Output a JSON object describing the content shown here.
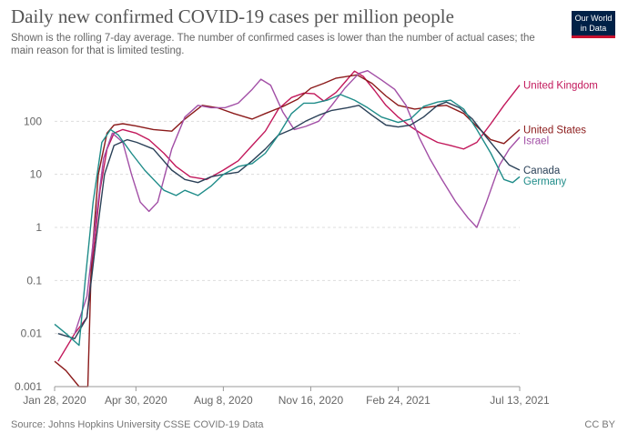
{
  "header": {
    "title": "Daily new confirmed COVID-19 cases per million people",
    "subtitle": "Shown is the rolling 7-day average. The number of confirmed cases is lower than the number of actual cases; the main reason for that is limited testing.",
    "logo_line1": "Our World",
    "logo_line2": "in Data"
  },
  "footer": {
    "source": "Source: Johns Hopkins University CSSE COVID-19 Data",
    "license": "CC BY"
  },
  "colors": {
    "United Kingdom": "#c2185b",
    "United States": "#8b1a1a",
    "Israel": "#a24fa6",
    "Canada": "#2b4158",
    "Germany": "#1f8c89"
  },
  "chart_data": {
    "type": "line",
    "title": "Daily new confirmed COVID-19 cases per million people",
    "yscale": "log",
    "ylim": [
      0.001,
      1000
    ],
    "yticks": [
      0.001,
      0.01,
      0.1,
      1,
      10,
      100
    ],
    "ytick_labels": [
      "0.001",
      "0.01",
      "0.1",
      "1",
      "10",
      "100"
    ],
    "xlim": [
      "2020-01-28",
      "2021-07-13"
    ],
    "xticks": [
      "2020-01-28",
      "2020-04-30",
      "2020-08-08",
      "2020-11-16",
      "2021-02-24",
      "2021-07-13"
    ],
    "xtick_labels": [
      "Jan 28, 2020",
      "Apr 30, 2020",
      "Aug 8, 2020",
      "Nov 16, 2020",
      "Feb 24, 2021",
      "Jul 13, 2021"
    ],
    "grid": true,
    "legend": "inline-right",
    "series": [
      {
        "name": "United Kingdom",
        "points": [
          [
            "2020-02-01",
            0.003
          ],
          [
            "2020-02-20",
            0.01
          ],
          [
            "2020-03-05",
            0.02
          ],
          [
            "2020-03-12",
            0.3
          ],
          [
            "2020-03-20",
            5
          ],
          [
            "2020-03-28",
            30
          ],
          [
            "2020-04-05",
            60
          ],
          [
            "2020-04-15",
            70
          ],
          [
            "2020-04-30",
            60
          ],
          [
            "2020-05-15",
            45
          ],
          [
            "2020-06-01",
            25
          ],
          [
            "2020-06-15",
            14
          ],
          [
            "2020-07-01",
            9
          ],
          [
            "2020-07-20",
            8
          ],
          [
            "2020-08-08",
            12
          ],
          [
            "2020-08-25",
            18
          ],
          [
            "2020-09-10",
            35
          ],
          [
            "2020-09-25",
            65
          ],
          [
            "2020-10-10",
            170
          ],
          [
            "2020-10-25",
            280
          ],
          [
            "2020-11-08",
            340
          ],
          [
            "2020-11-20",
            330
          ],
          [
            "2020-12-01",
            240
          ],
          [
            "2020-12-15",
            350
          ],
          [
            "2020-12-28",
            620
          ],
          [
            "2021-01-05",
            880
          ],
          [
            "2021-01-15",
            700
          ],
          [
            "2021-01-28",
            380
          ],
          [
            "2021-02-10",
            200
          ],
          [
            "2021-02-24",
            120
          ],
          [
            "2021-03-10",
            80
          ],
          [
            "2021-03-25",
            55
          ],
          [
            "2021-04-10",
            40
          ],
          [
            "2021-04-25",
            35
          ],
          [
            "2021-05-10",
            30
          ],
          [
            "2021-05-25",
            40
          ],
          [
            "2021-06-10",
            90
          ],
          [
            "2021-06-25",
            200
          ],
          [
            "2021-07-13",
            480
          ]
        ]
      },
      {
        "name": "United States",
        "points": [
          [
            "2020-01-28",
            0.003
          ],
          [
            "2020-02-10",
            0.002
          ],
          [
            "2020-02-25",
            0.001
          ],
          [
            "2020-03-06",
            0.001
          ],
          [
            "2020-03-10",
            0.2
          ],
          [
            "2020-03-18",
            10
          ],
          [
            "2020-03-28",
            60
          ],
          [
            "2020-04-05",
            85
          ],
          [
            "2020-04-15",
            90
          ],
          [
            "2020-04-30",
            82
          ],
          [
            "2020-05-20",
            70
          ],
          [
            "2020-06-10",
            65
          ],
          [
            "2020-06-25",
            110
          ],
          [
            "2020-07-15",
            200
          ],
          [
            "2020-08-01",
            180
          ],
          [
            "2020-08-20",
            140
          ],
          [
            "2020-09-10",
            110
          ],
          [
            "2020-09-25",
            140
          ],
          [
            "2020-10-15",
            190
          ],
          [
            "2020-11-01",
            260
          ],
          [
            "2020-11-16",
            420
          ],
          [
            "2020-12-01",
            520
          ],
          [
            "2020-12-15",
            650
          ],
          [
            "2021-01-08",
            750
          ],
          [
            "2021-01-25",
            520
          ],
          [
            "2021-02-10",
            300
          ],
          [
            "2021-02-24",
            200
          ],
          [
            "2021-03-15",
            170
          ],
          [
            "2021-04-05",
            190
          ],
          [
            "2021-04-20",
            200
          ],
          [
            "2021-05-10",
            140
          ],
          [
            "2021-05-25",
            80
          ],
          [
            "2021-06-10",
            45
          ],
          [
            "2021-06-25",
            38
          ],
          [
            "2021-07-13",
            70
          ]
        ]
      },
      {
        "name": "Israel",
        "points": [
          [
            "2020-02-20",
            0.01
          ],
          [
            "2020-03-05",
            0.05
          ],
          [
            "2020-03-14",
            1
          ],
          [
            "2020-03-24",
            20
          ],
          [
            "2020-04-03",
            60
          ],
          [
            "2020-04-15",
            40
          ],
          [
            "2020-04-25",
            10
          ],
          [
            "2020-05-05",
            3
          ],
          [
            "2020-05-15",
            2
          ],
          [
            "2020-05-25",
            3
          ],
          [
            "2020-06-10",
            30
          ],
          [
            "2020-06-25",
            120
          ],
          [
            "2020-07-10",
            200
          ],
          [
            "2020-07-25",
            180
          ],
          [
            "2020-08-10",
            180
          ],
          [
            "2020-08-25",
            220
          ],
          [
            "2020-09-10",
            400
          ],
          [
            "2020-09-20",
            620
          ],
          [
            "2020-10-01",
            480
          ],
          [
            "2020-10-15",
            150
          ],
          [
            "2020-10-28",
            70
          ],
          [
            "2020-11-10",
            80
          ],
          [
            "2020-11-25",
            100
          ],
          [
            "2020-12-10",
            200
          ],
          [
            "2020-12-25",
            420
          ],
          [
            "2021-01-10",
            800
          ],
          [
            "2021-01-20",
            900
          ],
          [
            "2021-02-05",
            600
          ],
          [
            "2021-02-20",
            400
          ],
          [
            "2021-03-05",
            200
          ],
          [
            "2021-03-20",
            50
          ],
          [
            "2021-04-01",
            20
          ],
          [
            "2021-04-15",
            8
          ],
          [
            "2021-05-01",
            3
          ],
          [
            "2021-05-15",
            1.5
          ],
          [
            "2021-05-25",
            1
          ],
          [
            "2021-06-05",
            3
          ],
          [
            "2021-06-20",
            15
          ],
          [
            "2021-07-01",
            30
          ],
          [
            "2021-07-13",
            50
          ]
        ]
      },
      {
        "name": "Canada",
        "points": [
          [
            "2020-02-01",
            0.01
          ],
          [
            "2020-02-20",
            0.008
          ],
          [
            "2020-03-05",
            0.02
          ],
          [
            "2020-03-15",
            0.5
          ],
          [
            "2020-03-25",
            10
          ],
          [
            "2020-04-05",
            35
          ],
          [
            "2020-04-20",
            45
          ],
          [
            "2020-05-01",
            40
          ],
          [
            "2020-05-20",
            30
          ],
          [
            "2020-06-10",
            12
          ],
          [
            "2020-06-25",
            8
          ],
          [
            "2020-07-10",
            7
          ],
          [
            "2020-07-25",
            9
          ],
          [
            "2020-08-08",
            10
          ],
          [
            "2020-08-25",
            11
          ],
          [
            "2020-09-10",
            18
          ],
          [
            "2020-09-25",
            30
          ],
          [
            "2020-10-10",
            55
          ],
          [
            "2020-10-25",
            70
          ],
          [
            "2020-11-10",
            100
          ],
          [
            "2020-11-25",
            130
          ],
          [
            "2020-12-10",
            160
          ],
          [
            "2020-12-28",
            180
          ],
          [
            "2021-01-10",
            200
          ],
          [
            "2021-01-25",
            130
          ],
          [
            "2021-02-10",
            85
          ],
          [
            "2021-02-24",
            78
          ],
          [
            "2021-03-10",
            85
          ],
          [
            "2021-03-25",
            120
          ],
          [
            "2021-04-10",
            200
          ],
          [
            "2021-04-20",
            230
          ],
          [
            "2021-05-05",
            180
          ],
          [
            "2021-05-20",
            110
          ],
          [
            "2021-06-05",
            50
          ],
          [
            "2021-06-20",
            25
          ],
          [
            "2021-07-01",
            15
          ],
          [
            "2021-07-13",
            12
          ]
        ]
      },
      {
        "name": "Germany",
        "points": [
          [
            "2020-01-28",
            0.015
          ],
          [
            "2020-02-10",
            0.01
          ],
          [
            "2020-02-25",
            0.006
          ],
          [
            "2020-03-03",
            0.1
          ],
          [
            "2020-03-12",
            3
          ],
          [
            "2020-03-22",
            40
          ],
          [
            "2020-04-01",
            70
          ],
          [
            "2020-04-10",
            55
          ],
          [
            "2020-04-25",
            25
          ],
          [
            "2020-05-10",
            12
          ],
          [
            "2020-06-01",
            5
          ],
          [
            "2020-06-15",
            4
          ],
          [
            "2020-06-25",
            5
          ],
          [
            "2020-07-10",
            4
          ],
          [
            "2020-07-25",
            6
          ],
          [
            "2020-08-08",
            10
          ],
          [
            "2020-08-25",
            14
          ],
          [
            "2020-09-10",
            16
          ],
          [
            "2020-09-25",
            25
          ],
          [
            "2020-10-10",
            55
          ],
          [
            "2020-10-25",
            140
          ],
          [
            "2020-11-08",
            220
          ],
          [
            "2020-11-20",
            220
          ],
          [
            "2020-12-05",
            250
          ],
          [
            "2020-12-20",
            320
          ],
          [
            "2021-01-05",
            250
          ],
          [
            "2021-01-20",
            180
          ],
          [
            "2021-02-05",
            120
          ],
          [
            "2021-02-24",
            95
          ],
          [
            "2021-03-10",
            110
          ],
          [
            "2021-03-25",
            190
          ],
          [
            "2021-04-10",
            230
          ],
          [
            "2021-04-25",
            250
          ],
          [
            "2021-05-10",
            170
          ],
          [
            "2021-05-25",
            70
          ],
          [
            "2021-06-10",
            25
          ],
          [
            "2021-06-25",
            8
          ],
          [
            "2021-07-05",
            7
          ],
          [
            "2021-07-13",
            9
          ]
        ]
      }
    ],
    "labels": [
      "United Kingdom",
      "United States",
      "Israel",
      "Canada",
      "Germany"
    ]
  }
}
